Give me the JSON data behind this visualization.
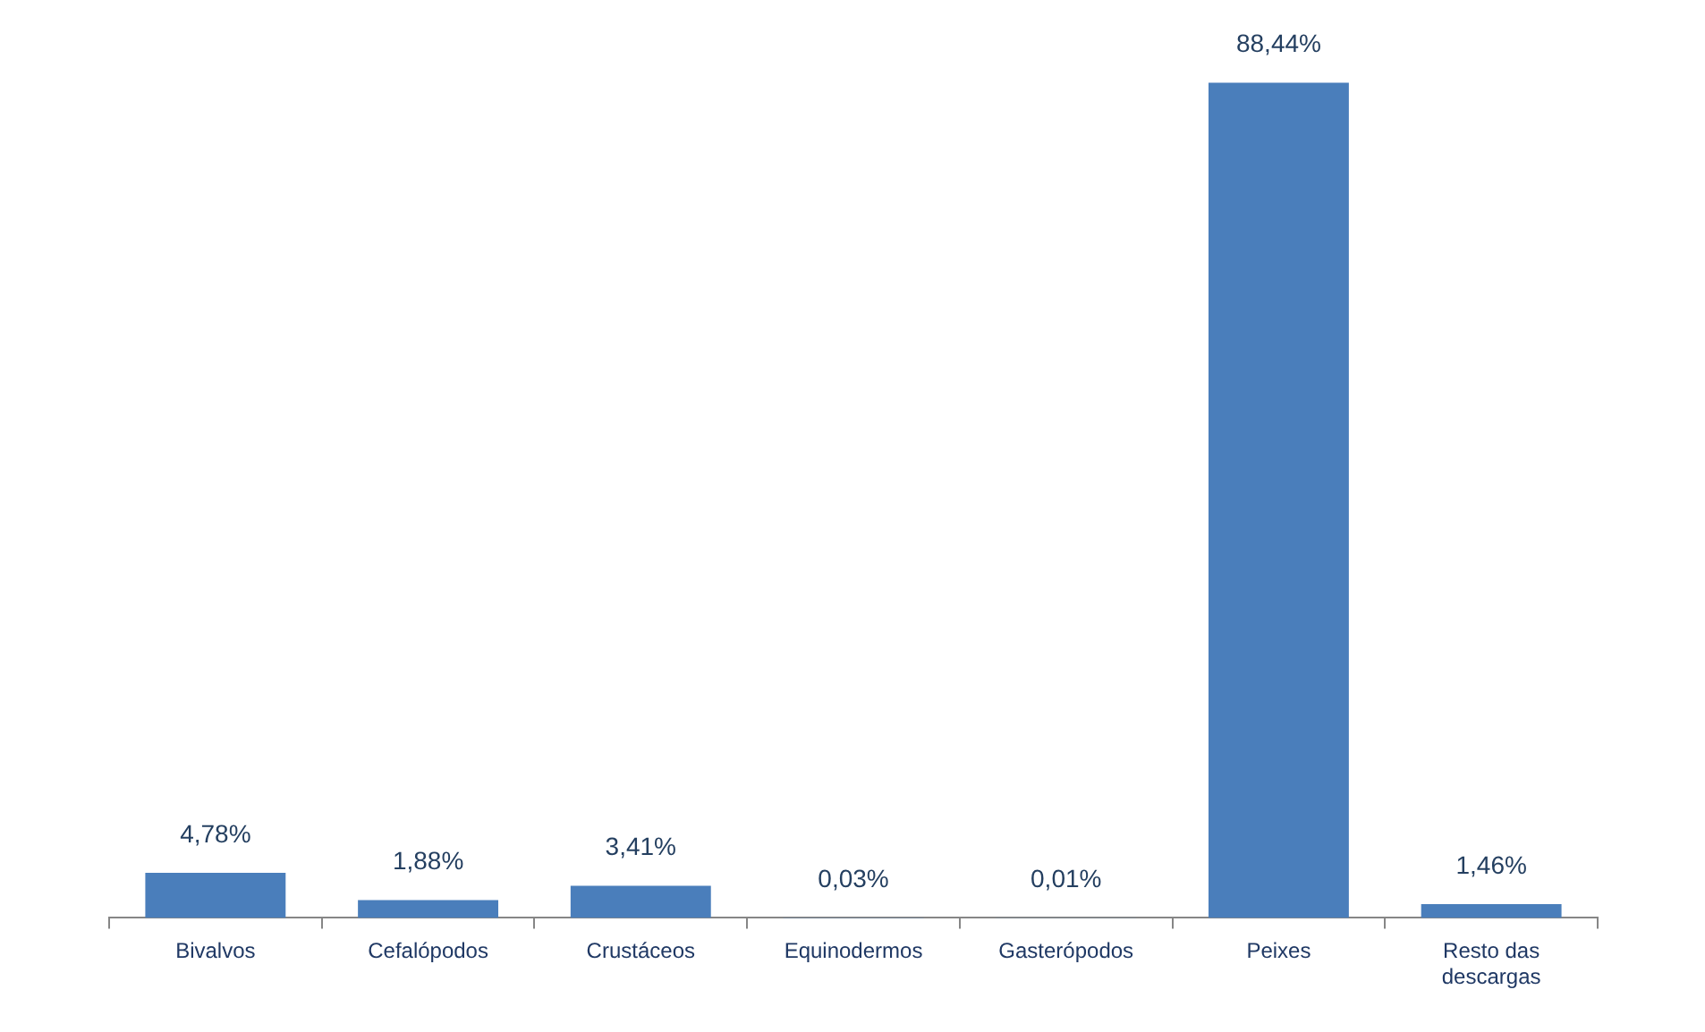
{
  "chart_data": {
    "type": "bar",
    "categories": [
      "Bivalvos",
      "Cefalópodos",
      "Crustáceos",
      "Equinodermos",
      "Gasterópodos",
      "Peixes",
      "Resto das descargas"
    ],
    "values": [
      4.78,
      1.88,
      3.41,
      0.03,
      0.01,
      88.44,
      1.46
    ],
    "value_labels": [
      "4,78%",
      "1,88%",
      "3,41%",
      "0,03%",
      "0,01%",
      "88,44%",
      "1,46%"
    ],
    "color": "#4a7ebb",
    "tick_labels": "x"
  }
}
